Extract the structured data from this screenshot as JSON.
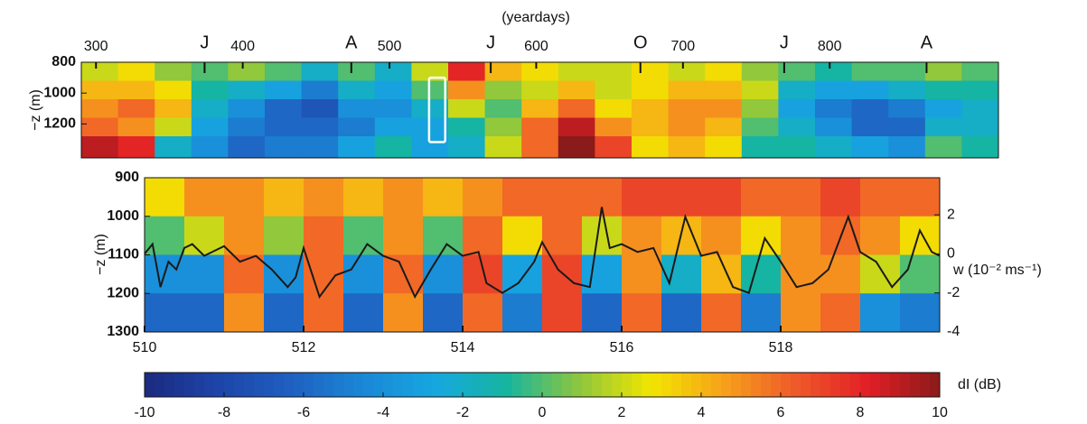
{
  "chart_data": [
    {
      "type": "heatmap",
      "title": "(yeardays)",
      "ylabel": "−z (m)",
      "xlim": [
        290,
        915
      ],
      "xticks": [
        300,
        400,
        500,
        600,
        700,
        800
      ],
      "ylim": [
        800,
        1420
      ],
      "yticks": [
        800,
        1000,
        1200
      ],
      "y_inverted": true,
      "annotations": [
        {
          "text": "J",
          "x": 374
        },
        {
          "text": "A",
          "x": 474
        },
        {
          "text": "J",
          "x": 569
        },
        {
          "text": "O",
          "x": 671
        },
        {
          "text": "J",
          "x": 769
        },
        {
          "text": "A",
          "x": 866
        }
      ],
      "highlight": {
        "x": [
          527,
          538
        ],
        "y": [
          900,
          1318
        ],
        "color": "#ffffff"
      },
      "x_edges": [
        290,
        315,
        340,
        365,
        390,
        415,
        440,
        465,
        490,
        515,
        540,
        565,
        590,
        615,
        640,
        665,
        690,
        715,
        740,
        765,
        790,
        815,
        840,
        865,
        890,
        915
      ],
      "y_edges": [
        800,
        920,
        1040,
        1160,
        1280,
        1420
      ],
      "z": [
        [
          2,
          3,
          1,
          0,
          1,
          0,
          -2,
          0,
          -2,
          2,
          8,
          4,
          3,
          2,
          2,
          3,
          2,
          3,
          1,
          0,
          -1,
          0,
          0,
          1,
          0
        ],
        [
          4,
          4,
          3,
          -1,
          -2,
          -3,
          -5,
          -2,
          -3,
          0,
          5,
          1,
          2,
          4,
          2,
          3,
          4,
          4,
          2,
          -2,
          -3,
          -3,
          -2,
          -1,
          -1
        ],
        [
          5,
          6,
          4,
          -2,
          -4,
          -6,
          -7,
          -4,
          -4,
          -2,
          2,
          0,
          4,
          6,
          3,
          4,
          5,
          5,
          1,
          -3,
          -5,
          -6,
          -5,
          -3,
          -2
        ],
        [
          6,
          5,
          2,
          -3,
          -5,
          -6,
          -6,
          -5,
          -3,
          -3,
          -1,
          1,
          6,
          9,
          5,
          4,
          5,
          4,
          0,
          -2,
          -4,
          -6,
          -6,
          -2,
          -2
        ],
        [
          9,
          8,
          -2,
          -4,
          -6,
          -5,
          -5,
          -3,
          -1,
          -3,
          -2,
          2,
          6,
          10,
          7,
          3,
          4,
          3,
          -1,
          -1,
          -2,
          -3,
          -4,
          0,
          -1
        ]
      ]
    },
    {
      "type": "heatmap",
      "ylabel": "−z (m)",
      "y2label": "w (10⁻² ms⁻¹)",
      "xlim": [
        510,
        520
      ],
      "xticks": [
        510,
        512,
        514,
        516,
        518
      ],
      "ylim": [
        900,
        1300
      ],
      "yticks": [
        900,
        1000,
        1100,
        1200,
        1300
      ],
      "y_inverted": true,
      "y2lim": [
        -4,
        3.9
      ],
      "y2ticks": [
        -4,
        -2,
        0,
        2
      ],
      "x_edges": [
        510,
        510.5,
        511,
        511.5,
        512,
        512.5,
        513,
        513.5,
        514,
        514.5,
        515,
        515.5,
        516,
        516.5,
        517,
        517.5,
        518,
        518.5,
        519,
        519.5,
        520
      ],
      "y_edges": [
        900,
        1000,
        1100,
        1200,
        1300
      ],
      "z": [
        [
          3,
          5,
          5,
          4,
          5,
          4,
          5,
          4,
          5,
          6,
          6,
          6,
          7,
          7,
          7,
          6,
          6,
          7,
          6,
          6
        ],
        [
          0,
          2,
          5,
          1,
          6,
          0,
          5,
          0,
          6,
          3,
          6,
          2,
          5,
          4,
          5,
          3,
          5,
          6,
          5,
          3
        ],
        [
          -4,
          -4,
          6,
          -4,
          6,
          -4,
          6,
          -4,
          7,
          -3,
          7,
          -3,
          5,
          -2,
          4,
          -1,
          5,
          5,
          2,
          0
        ],
        [
          -6,
          -6,
          5,
          -6,
          6,
          -6,
          5,
          -6,
          6,
          -5,
          7,
          -6,
          6,
          -6,
          6,
          -5,
          5,
          6,
          -4,
          -5
        ]
      ],
      "series": [
        {
          "color": "#1a1a1a",
          "axis": "y2",
          "x": [
            510.0,
            510.1,
            510.2,
            510.3,
            510.4,
            510.5,
            510.6,
            510.75,
            511.0,
            511.2,
            511.4,
            511.6,
            511.8,
            511.9,
            512.0,
            512.2,
            512.4,
            512.6,
            512.8,
            513.0,
            513.2,
            513.4,
            513.6,
            513.8,
            514.0,
            514.2,
            514.3,
            514.5,
            514.7,
            514.9,
            515.0,
            515.2,
            515.4,
            515.6,
            515.75,
            515.85,
            516.0,
            516.2,
            516.4,
            516.6,
            516.8,
            517.0,
            517.2,
            517.4,
            517.6,
            517.8,
            518.0,
            518.2,
            518.4,
            518.6,
            518.85,
            519.0,
            519.2,
            519.4,
            519.6,
            519.75,
            519.9,
            520.0
          ],
          "values": [
            0,
            0.5,
            -1.7,
            -0.4,
            -0.8,
            0.3,
            0.5,
            -0.1,
            0.4,
            -0.4,
            -0.1,
            -0.8,
            -1.7,
            -1.2,
            0.3,
            -2.2,
            -1.1,
            -0.8,
            0.5,
            -0.1,
            -0.4,
            -2.2,
            -0.8,
            0.5,
            -0.1,
            0.1,
            -1.5,
            -2.0,
            -1.5,
            -0.4,
            0.6,
            -0.8,
            -1.5,
            -1.7,
            2.4,
            0.3,
            0.5,
            0.1,
            0.3,
            -1.5,
            1.9,
            -0.1,
            0.1,
            -1.7,
            -2.0,
            0.8,
            -0.4,
            -1.7,
            -1.5,
            -0.8,
            1.9,
            0.1,
            -0.4,
            -1.7,
            -0.8,
            1.2,
            0.1,
            -0.1
          ]
        }
      ],
      "colorbar": {
        "label": "dI (dB)",
        "clim": [
          -10,
          10
        ],
        "ticks": [
          -10,
          -8,
          -6,
          -4,
          -2,
          0,
          2,
          4,
          6,
          8,
          10
        ],
        "colormap": [
          "#1c2a80",
          "#1d44a8",
          "#1f5fbf",
          "#1a86d6",
          "#16a7e0",
          "#16b5a0",
          "#8cc63f",
          "#f2e600",
          "#f7a21b",
          "#ef5a2a",
          "#e21f26",
          "#8b1a1a"
        ]
      }
    }
  ]
}
